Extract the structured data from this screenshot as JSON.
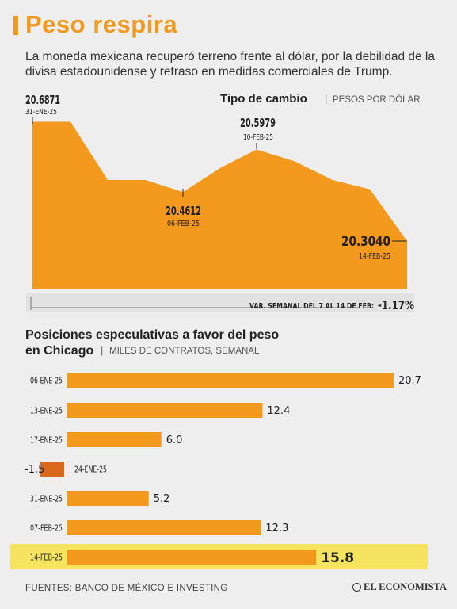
{
  "title": "Peso respira",
  "subtitle": "La moneda mexicana recuperó terreno frente al dólar, por la debilidad de la divisa estadounidense y retraso en medidas comerciales de Trump.",
  "colors": {
    "accent": "#f39a1e",
    "negative": "#d9681c",
    "highlight": "#f7e046",
    "text": "#222222"
  },
  "chart_data": [
    {
      "type": "area",
      "title": "Tipo de cambio",
      "subtitle": "PESOS POR DÓLAR",
      "values": [
        20.6871,
        20.6871,
        20.5,
        20.5,
        20.4612,
        20.54,
        20.5979,
        20.56,
        20.5,
        20.47,
        20.304
      ],
      "annotations": [
        {
          "value": "20.6871",
          "date": "31-ENE-25"
        },
        {
          "value": "20.5979",
          "date": "10-FEB-25"
        },
        {
          "value": "20.4612",
          "date": "06-FEB-25"
        },
        {
          "value": "20.3040",
          "date": "14-FEB-25"
        }
      ],
      "ylim": [
        20.25,
        20.7
      ],
      "footnote_label": "VAR. SEMANAL DEL 7 AL 14 DE FEB:",
      "footnote_value": "-1.17%"
    },
    {
      "type": "bar",
      "title": "Posiciones especulativas a favor del peso en Chicago",
      "subtitle": "MILES DE CONTRATOS, SEMANAL",
      "categories": [
        "06-ENE-25",
        "13-ENE-25",
        "17-ENE-25",
        "24-ENE-25",
        "31-ENE-25",
        "07-FEB-25",
        "14-FEB-25"
      ],
      "values": [
        20.7,
        12.4,
        6.0,
        -1.5,
        5.2,
        12.3,
        15.8
      ],
      "value_labels": [
        "20.7",
        "12.4",
        "6.0",
        "-1.5",
        "5.2",
        "12.3",
        "15.8"
      ],
      "highlight": "14-FEB-25"
    }
  ],
  "footer": {
    "source": "FUENTES: BANCO DE MÉXICO E INVESTING",
    "logo": "EL ECONOMISTA"
  }
}
